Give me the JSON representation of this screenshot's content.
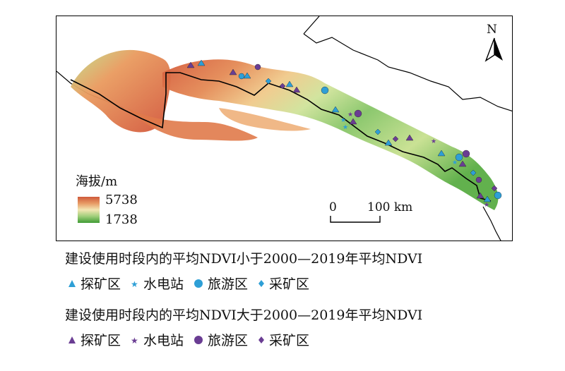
{
  "north_arrow": {
    "label": "N"
  },
  "elevation_legend": {
    "title": "海拔/m",
    "max": "5738",
    "min": "1738",
    "colors": [
      "#cf5a3a",
      "#e79a64",
      "#f3e6b3",
      "#9fce7a",
      "#3f9b34"
    ]
  },
  "scale_bar": {
    "zero": "0",
    "value": "100 km"
  },
  "legend": {
    "group_below": {
      "title": "建设使用时段内的平均NDVI小于2000—2019年平均NDVI",
      "color": "#2e9fd6",
      "items": [
        {
          "label": "探矿区",
          "icon": "triangle-icon"
        },
        {
          "label": "水电站",
          "icon": "star-icon"
        },
        {
          "label": "旅游区",
          "icon": "circle-icon"
        },
        {
          "label": "采矿区",
          "icon": "diamond-icon"
        }
      ]
    },
    "group_above": {
      "title": "建设使用时段内的平均NDVI大于2000—2019年平均NDVI",
      "color": "#6a3d93",
      "items": [
        {
          "label": "探矿区",
          "icon": "triangle-icon"
        },
        {
          "label": "水电站",
          "icon": "star-icon"
        },
        {
          "label": "旅游区",
          "icon": "circle-icon"
        },
        {
          "label": "采矿区",
          "icon": "diamond-icon"
        }
      ]
    }
  }
}
